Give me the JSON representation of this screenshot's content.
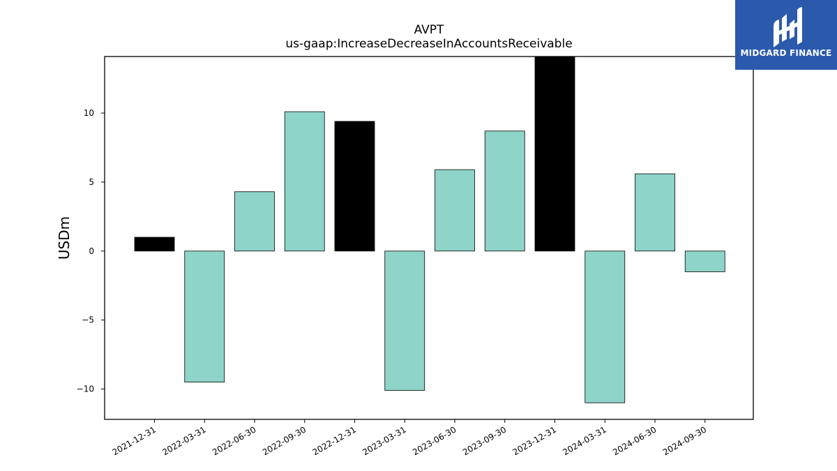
{
  "chart_data": {
    "type": "bar",
    "title": "AVPT",
    "subtitle": "us-gaap:IncreaseDecreaseInAccountsReceivable",
    "xlabel": "",
    "ylabel": "USDm",
    "categories": [
      "2021-12-31",
      "2022-03-31",
      "2022-06-30",
      "2022-09-30",
      "2022-12-31",
      "2023-03-31",
      "2023-06-30",
      "2023-09-30",
      "2023-12-31",
      "2024-03-31",
      "2024-06-30",
      "2024-09-30"
    ],
    "values": [
      1.0,
      -9.5,
      4.3,
      10.1,
      9.4,
      -10.1,
      5.9,
      8.7,
      14.2,
      -11.0,
      5.6,
      -1.5
    ],
    "highlighted": [
      true,
      false,
      false,
      false,
      true,
      false,
      false,
      false,
      true,
      false,
      false,
      false
    ],
    "ylim": [
      -12.2,
      14.1
    ],
    "yticks": [
      -10,
      -5,
      0,
      5,
      10
    ],
    "ytick_labels": [
      "−10",
      "−5",
      "0",
      "5",
      "10"
    ],
    "grid": false,
    "colors": {
      "default_bar": "#8fd4c8",
      "highlight_bar": "#000000",
      "bar_edge": "#000000"
    }
  },
  "logo": {
    "text": "MIDGARD FINANCE",
    "background": "#2b5aad",
    "icon": "midgard-logo-icon"
  }
}
